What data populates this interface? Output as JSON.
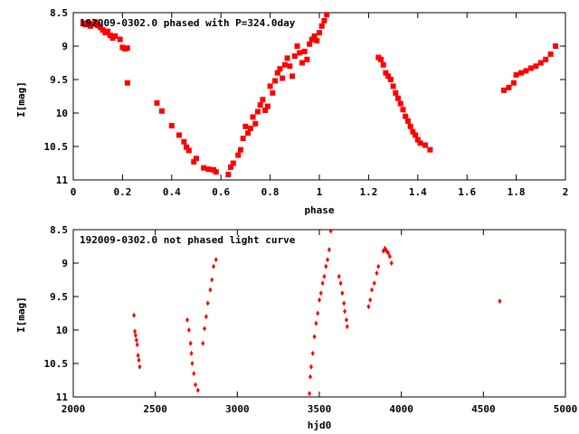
{
  "chart_data": [
    {
      "type": "scatter",
      "title": "192009-0302.0 phased with P=324.0day",
      "xlabel": "phase",
      "ylabel": "I[mag]",
      "xlim": [
        0,
        2
      ],
      "ylim": [
        11,
        8.5
      ],
      "y_inverted": true,
      "xticks": [
        "0",
        "0.2",
        "0.4",
        "0.6",
        "0.8",
        "1",
        "1.2",
        "1.4",
        "1.6",
        "1.8",
        "2"
      ],
      "xtick_values": [
        0,
        0.2,
        0.4,
        0.6,
        0.8,
        1.0,
        1.2,
        1.4,
        1.6,
        1.8,
        2.0
      ],
      "yticks": [
        "8.5",
        "9",
        "9.5",
        "10",
        "10.5",
        "11"
      ],
      "ytick_values": [
        8.5,
        9,
        9.5,
        10,
        10.5,
        11
      ],
      "marker_color": "#ff0000",
      "marker": "filled-square",
      "grid": false,
      "points": [
        [
          0.04,
          8.66
        ],
        [
          0.05,
          8.68
        ],
        [
          0.06,
          8.65
        ],
        [
          0.07,
          8.7
        ],
        [
          0.08,
          8.67
        ],
        [
          0.09,
          8.64
        ],
        [
          0.1,
          8.69
        ],
        [
          0.11,
          8.72
        ],
        [
          0.12,
          8.76
        ],
        [
          0.13,
          8.8
        ],
        [
          0.14,
          8.78
        ],
        [
          0.15,
          8.84
        ],
        [
          0.16,
          8.88
        ],
        [
          0.17,
          8.85
        ],
        [
          0.19,
          8.9
        ],
        [
          0.2,
          9.02
        ],
        [
          0.21,
          9.04
        ],
        [
          0.22,
          9.03
        ],
        [
          0.22,
          9.55
        ],
        [
          0.34,
          9.85
        ],
        [
          0.36,
          9.97
        ],
        [
          0.4,
          10.19
        ],
        [
          0.43,
          10.33
        ],
        [
          0.45,
          10.43
        ],
        [
          0.46,
          10.51
        ],
        [
          0.47,
          10.56
        ],
        [
          0.49,
          10.73
        ],
        [
          0.5,
          10.68
        ],
        [
          0.53,
          10.82
        ],
        [
          0.55,
          10.84
        ],
        [
          0.57,
          10.85
        ],
        [
          0.58,
          10.88
        ],
        [
          0.63,
          10.92
        ],
        [
          0.64,
          10.81
        ],
        [
          0.65,
          10.75
        ],
        [
          0.67,
          10.63
        ],
        [
          0.68,
          10.55
        ],
        [
          0.69,
          10.38
        ],
        [
          0.7,
          10.2
        ],
        [
          0.71,
          10.3
        ],
        [
          0.72,
          10.23
        ],
        [
          0.73,
          10.06
        ],
        [
          0.74,
          10.16
        ],
        [
          0.75,
          9.98
        ],
        [
          0.76,
          9.88
        ],
        [
          0.77,
          9.8
        ],
        [
          0.78,
          9.96
        ],
        [
          0.79,
          9.9
        ],
        [
          0.8,
          9.6
        ],
        [
          0.81,
          9.7
        ],
        [
          0.82,
          9.52
        ],
        [
          0.83,
          9.4
        ],
        [
          0.84,
          9.34
        ],
        [
          0.85,
          9.48
        ],
        [
          0.86,
          9.28
        ],
        [
          0.87,
          9.18
        ],
        [
          0.88,
          9.3
        ],
        [
          0.89,
          9.45
        ],
        [
          0.9,
          9.15
        ],
        [
          0.91,
          9.0
        ],
        [
          0.92,
          9.1
        ],
        [
          0.93,
          9.25
        ],
        [
          0.94,
          9.08
        ],
        [
          0.95,
          9.2
        ],
        [
          0.96,
          8.97
        ],
        [
          0.97,
          8.9
        ],
        [
          0.98,
          8.85
        ],
        [
          0.99,
          8.92
        ],
        [
          1.0,
          8.8
        ],
        [
          1.01,
          8.7
        ],
        [
          1.02,
          8.62
        ],
        [
          1.03,
          8.53
        ],
        [
          1.24,
          9.17
        ],
        [
          1.25,
          9.2
        ],
        [
          1.26,
          9.28
        ],
        [
          1.27,
          9.4
        ],
        [
          1.28,
          9.45
        ],
        [
          1.29,
          9.5
        ],
        [
          1.3,
          9.6
        ],
        [
          1.31,
          9.7
        ],
        [
          1.32,
          9.78
        ],
        [
          1.33,
          9.86
        ],
        [
          1.34,
          9.95
        ],
        [
          1.35,
          10.05
        ],
        [
          1.36,
          10.12
        ],
        [
          1.37,
          10.2
        ],
        [
          1.38,
          10.28
        ],
        [
          1.39,
          10.33
        ],
        [
          1.4,
          10.4
        ],
        [
          1.41,
          10.45
        ],
        [
          1.43,
          10.48
        ],
        [
          1.45,
          10.55
        ],
        [
          1.75,
          9.66
        ],
        [
          1.77,
          9.62
        ],
        [
          1.79,
          9.55
        ],
        [
          1.8,
          9.43
        ],
        [
          1.82,
          9.4
        ],
        [
          1.84,
          9.37
        ],
        [
          1.86,
          9.33
        ],
        [
          1.88,
          9.3
        ],
        [
          1.9,
          9.25
        ],
        [
          1.92,
          9.2
        ],
        [
          1.94,
          9.12
        ],
        [
          1.96,
          9.0
        ]
      ]
    },
    {
      "type": "scatter",
      "title": "192009-0302.0 not phased light curve",
      "xlabel": "hjd0",
      "ylabel": "I[mag]",
      "xlim": [
        2000,
        5000
      ],
      "ylim": [
        11,
        8.5
      ],
      "y_inverted": true,
      "xticks": [
        "2000",
        "2500",
        "3000",
        "3500",
        "4000",
        "4500",
        "5000"
      ],
      "xtick_values": [
        2000,
        2500,
        3000,
        3500,
        4000,
        4500,
        5000
      ],
      "yticks": [
        "8.5",
        "9",
        "9.5",
        "10",
        "10.5",
        "11"
      ],
      "ytick_values": [
        8.5,
        9,
        9.5,
        10,
        10.5,
        11
      ],
      "marker_color": "#ff0000",
      "marker": "filled-diamond",
      "grid": false,
      "points": [
        [
          2370,
          9.78
        ],
        [
          2375,
          10.02
        ],
        [
          2380,
          10.08
        ],
        [
          2385,
          10.15
        ],
        [
          2390,
          10.22
        ],
        [
          2395,
          10.38
        ],
        [
          2400,
          10.45
        ],
        [
          2405,
          10.55
        ],
        [
          2695,
          9.85
        ],
        [
          2705,
          10.0
        ],
        [
          2715,
          10.2
        ],
        [
          2720,
          10.35
        ],
        [
          2725,
          10.5
        ],
        [
          2735,
          10.65
        ],
        [
          2745,
          10.82
        ],
        [
          2760,
          10.9
        ],
        [
          2790,
          10.2
        ],
        [
          2800,
          9.98
        ],
        [
          2810,
          9.8
        ],
        [
          2820,
          9.6
        ],
        [
          2835,
          9.4
        ],
        [
          2845,
          9.25
        ],
        [
          2855,
          9.05
        ],
        [
          2870,
          8.95
        ],
        [
          3440,
          10.95
        ],
        [
          3445,
          10.7
        ],
        [
          3450,
          10.55
        ],
        [
          3460,
          10.35
        ],
        [
          3470,
          10.1
        ],
        [
          3480,
          9.9
        ],
        [
          3490,
          9.75
        ],
        [
          3500,
          9.55
        ],
        [
          3510,
          9.45
        ],
        [
          3520,
          9.3
        ],
        [
          3530,
          9.2
        ],
        [
          3540,
          9.05
        ],
        [
          3550,
          8.95
        ],
        [
          3560,
          8.8
        ],
        [
          3570,
          8.52
        ],
        [
          3620,
          9.2
        ],
        [
          3630,
          9.3
        ],
        [
          3640,
          9.45
        ],
        [
          3650,
          9.6
        ],
        [
          3655,
          9.72
        ],
        [
          3665,
          9.85
        ],
        [
          3670,
          9.95
        ],
        [
          3800,
          9.65
        ],
        [
          3810,
          9.55
        ],
        [
          3820,
          9.4
        ],
        [
          3835,
          9.3
        ],
        [
          3850,
          9.15
        ],
        [
          3860,
          9.05
        ],
        [
          3890,
          8.82
        ],
        [
          3900,
          8.78
        ],
        [
          3910,
          8.82
        ],
        [
          3920,
          8.85
        ],
        [
          3930,
          8.9
        ],
        [
          3940,
          9.0
        ],
        [
          4600,
          9.57
        ]
      ]
    }
  ]
}
